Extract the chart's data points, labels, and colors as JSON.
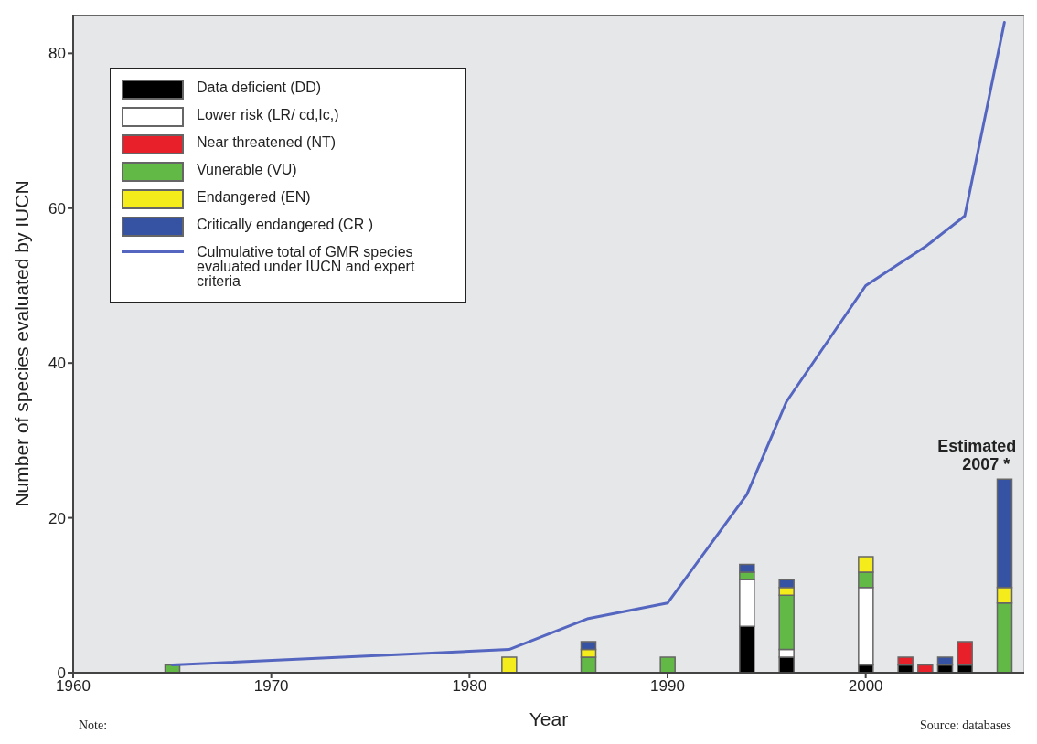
{
  "chart_data": {
    "type": "bar",
    "stacked": true,
    "xlabel": "Year",
    "ylabel": "Number of species evaluated by IUCN",
    "x": [
      1965,
      1982,
      1986,
      1990,
      1994,
      1996,
      2000,
      2002,
      2003,
      2004,
      2005,
      2007
    ],
    "series": [
      {
        "name": "Data deficient (DD)",
        "color": "#000000",
        "values": [
          0,
          0,
          0,
          0,
          6,
          2,
          1,
          1,
          0,
          1,
          1,
          0
        ]
      },
      {
        "name": "Lower risk (LR/ cd,Ic,)",
        "color": "#ffffff",
        "values": [
          0,
          0,
          0,
          0,
          6,
          1,
          10,
          0,
          0,
          0,
          0,
          0
        ]
      },
      {
        "name": "Near threatened (NT)",
        "color": "#e8202a",
        "values": [
          0,
          0,
          0,
          0,
          0,
          0,
          0,
          1,
          1,
          0,
          3,
          0
        ]
      },
      {
        "name": "Vunerable (VU)",
        "color": "#62b946",
        "values": [
          1,
          0,
          2,
          2,
          1,
          7,
          2,
          0,
          0,
          0,
          0,
          9
        ]
      },
      {
        "name": "Endangered (EN)",
        "color": "#f5ec1b",
        "values": [
          0,
          2,
          1,
          0,
          0,
          1,
          2,
          0,
          0,
          0,
          0,
          2
        ]
      },
      {
        "name": "Critically endangered (CR )",
        "color": "#3652a3",
        "values": [
          0,
          0,
          1,
          0,
          1,
          1,
          0,
          0,
          0,
          1,
          0,
          14
        ]
      },
      {
        "name": "Culmulative total of GMR species evaluated under IUCN and expert criteria",
        "type": "line",
        "color": "#5566c0",
        "x": [
          1965,
          1982,
          1986,
          1990,
          1994,
          1996,
          2000,
          2003,
          2005,
          2007
        ],
        "values": [
          1,
          3,
          7,
          9,
          23,
          35,
          50,
          55,
          59,
          84
        ]
      }
    ],
    "xlim": [
      1960,
      2008
    ],
    "xticks": [
      1960,
      1970,
      1980,
      1990,
      2000
    ],
    "ylim": [
      0,
      85
    ],
    "yticks": [
      0,
      20,
      40,
      60,
      80
    ],
    "legend": "top left",
    "annotations": [
      {
        "text": "Estimated 2007 *",
        "x": 2007,
        "y": 25
      },
      "Note:",
      "Source: databases"
    ]
  }
}
